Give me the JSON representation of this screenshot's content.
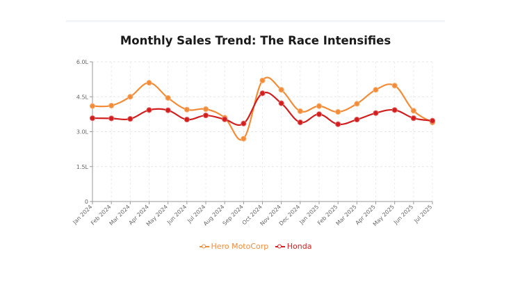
{
  "chart_data": {
    "type": "line",
    "title": "Monthly Sales Trend: The Race Intensifies",
    "xlabel": "",
    "ylabel": "",
    "categories": [
      "Jan 2024",
      "Feb 2024",
      "Mar 2024",
      "Apr 2024",
      "May 2024",
      "Jun 2024",
      "Jul 2024",
      "Aug 2024",
      "Sep 2024",
      "Oct 2024",
      "Nov 2024",
      "Dec 2024",
      "Jan 2025",
      "Feb 2025",
      "Mar 2025",
      "Apr 2025",
      "May 2025",
      "Jun 2025",
      "Jul 2025"
    ],
    "y_ticks": [
      "0",
      "1.5L",
      "3.0L",
      "4.5L",
      "6.0L"
    ],
    "ylim": [
      0,
      6.0
    ],
    "grid": true,
    "legend_position": "bottom",
    "series": [
      {
        "name": "Hero MotoCorp",
        "color": "#f28c38",
        "values": [
          4.1,
          4.12,
          4.5,
          5.1,
          4.45,
          3.95,
          3.97,
          3.6,
          2.7,
          5.2,
          4.8,
          3.88,
          4.1,
          3.85,
          4.2,
          4.8,
          4.98,
          3.9,
          3.4
        ]
      },
      {
        "name": "Honda",
        "color": "#d11f1f",
        "values": [
          3.58,
          3.57,
          3.55,
          3.93,
          3.92,
          3.52,
          3.7,
          3.53,
          3.35,
          4.65,
          4.22,
          3.4,
          3.75,
          3.32,
          3.52,
          3.8,
          3.93,
          3.58,
          3.47
        ]
      }
    ]
  }
}
